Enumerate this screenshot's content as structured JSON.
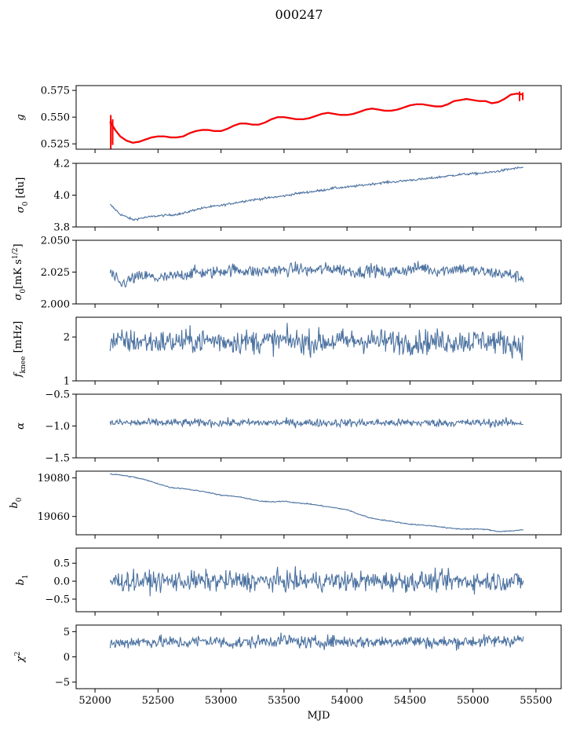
{
  "figure": {
    "title": "000247"
  },
  "colors": {
    "series": "#4c72a0",
    "overlay": "#ff0000",
    "frame": "#000000"
  },
  "chart_data": [
    {
      "type": "line",
      "name": "g",
      "ylabel": "g",
      "xlim": [
        51850,
        55700
      ],
      "ylim": [
        0.52,
        0.5795
      ],
      "yticks": [
        0.525,
        0.55,
        0.575
      ],
      "ytick_labels": [
        "0.525",
        "0.550",
        "0.575"
      ],
      "x": [
        52120,
        52160,
        52200,
        52250,
        52300,
        52350,
        52400,
        52450,
        52500,
        52550,
        52600,
        52650,
        52700,
        52750,
        52800,
        52850,
        52900,
        52950,
        53000,
        53050,
        53100,
        53150,
        53200,
        53250,
        53300,
        53350,
        53400,
        53450,
        53500,
        53550,
        53600,
        53650,
        53700,
        53750,
        53800,
        53850,
        53900,
        53950,
        54000,
        54050,
        54100,
        54150,
        54200,
        54250,
        54300,
        54350,
        54400,
        54450,
        54500,
        54550,
        54600,
        54650,
        54700,
        54750,
        54800,
        54850,
        54900,
        54950,
        55000,
        55050,
        55100,
        55150,
        55200,
        55250,
        55300,
        55350,
        55400
      ],
      "y": [
        0.545,
        0.538,
        0.532,
        0.528,
        0.526,
        0.527,
        0.529,
        0.531,
        0.532,
        0.532,
        0.531,
        0.531,
        0.532,
        0.535,
        0.537,
        0.538,
        0.538,
        0.537,
        0.537,
        0.539,
        0.542,
        0.544,
        0.544,
        0.543,
        0.543,
        0.545,
        0.548,
        0.55,
        0.55,
        0.549,
        0.548,
        0.548,
        0.549,
        0.551,
        0.553,
        0.554,
        0.553,
        0.552,
        0.552,
        0.553,
        0.555,
        0.557,
        0.558,
        0.557,
        0.556,
        0.556,
        0.557,
        0.559,
        0.561,
        0.562,
        0.562,
        0.561,
        0.56,
        0.56,
        0.562,
        0.565,
        0.566,
        0.567,
        0.566,
        0.565,
        0.565,
        0.563,
        0.564,
        0.567,
        0.571,
        0.572,
        0.571
      ],
      "overlay": {
        "x": [
          52120,
          52160,
          52200,
          52250,
          52300,
          52350,
          52400,
          52450,
          52500,
          52550,
          52600,
          52650,
          52700,
          52750,
          52800,
          52850,
          52900,
          52950,
          53000,
          53050,
          53100,
          53150,
          53200,
          53250,
          53300,
          53350,
          53400,
          53450,
          53500,
          53550,
          53600,
          53650,
          53700,
          53750,
          53800,
          53850,
          53900,
          53950,
          54000,
          54050,
          54100,
          54150,
          54200,
          54250,
          54300,
          54350,
          54400,
          54450,
          54500,
          54550,
          54600,
          54650,
          54700,
          54750,
          54800,
          54850,
          54900,
          54950,
          55000,
          55050,
          55100,
          55150,
          55200,
          55250,
          55300,
          55350,
          55400
        ],
        "y": [
          0.546,
          0.538,
          0.532,
          0.528,
          0.526,
          0.527,
          0.529,
          0.531,
          0.532,
          0.532,
          0.531,
          0.531,
          0.532,
          0.535,
          0.537,
          0.538,
          0.538,
          0.537,
          0.537,
          0.539,
          0.542,
          0.544,
          0.544,
          0.543,
          0.543,
          0.545,
          0.548,
          0.55,
          0.55,
          0.549,
          0.548,
          0.548,
          0.549,
          0.551,
          0.553,
          0.554,
          0.553,
          0.552,
          0.552,
          0.553,
          0.555,
          0.557,
          0.558,
          0.557,
          0.556,
          0.556,
          0.557,
          0.559,
          0.561,
          0.562,
          0.562,
          0.561,
          0.56,
          0.56,
          0.562,
          0.565,
          0.566,
          0.567,
          0.566,
          0.565,
          0.565,
          0.563,
          0.564,
          0.567,
          0.571,
          0.572,
          0.571
        ],
        "spikes": [
          {
            "x": 52125,
            "y0": 0.52,
            "y1": 0.552
          },
          {
            "x": 52140,
            "y0": 0.524,
            "y1": 0.548
          },
          {
            "x": 55370,
            "y0": 0.565,
            "y1": 0.574
          },
          {
            "x": 55395,
            "y0": 0.566,
            "y1": 0.573
          }
        ]
      }
    },
    {
      "type": "line",
      "name": "sigma0",
      "ylabel": "σ₀ [du]",
      "xlim": [
        51850,
        55700
      ],
      "ylim": [
        3.8,
        4.2
      ],
      "yticks": [
        3.8,
        4.0,
        4.2
      ],
      "ytick_labels": [
        "3.8",
        "4.0",
        "4.2"
      ],
      "x": [
        52120,
        52200,
        52300,
        52400,
        52500,
        52600,
        52700,
        52800,
        52900,
        53000,
        53100,
        53200,
        53300,
        53400,
        53500,
        53600,
        53700,
        53800,
        53900,
        54000,
        54100,
        54200,
        54300,
        54400,
        54500,
        54600,
        54700,
        54800,
        54900,
        55000,
        55100,
        55200,
        55300,
        55400
      ],
      "y": [
        3.94,
        3.88,
        3.845,
        3.86,
        3.87,
        3.875,
        3.885,
        3.91,
        3.925,
        3.935,
        3.95,
        3.965,
        3.975,
        3.985,
        3.995,
        4.01,
        4.02,
        4.03,
        4.045,
        4.05,
        4.06,
        4.07,
        4.08,
        4.085,
        4.095,
        4.1,
        4.11,
        4.12,
        4.13,
        4.135,
        4.14,
        4.15,
        4.165,
        4.175
      ],
      "noise": 0.005
    },
    {
      "type": "line",
      "name": "sigma0_rate",
      "ylabel": "σ₀[mK s¹ᐟ²]",
      "xlim": [
        51850,
        55700
      ],
      "ylim": [
        2.0,
        2.05
      ],
      "yticks": [
        2.0,
        2.025,
        2.05
      ],
      "ytick_labels": [
        "2.000",
        "2.025",
        "2.050"
      ],
      "x": [
        52120,
        52200,
        52300,
        52400,
        52500,
        52600,
        52700,
        52800,
        52900,
        53000,
        53100,
        53200,
        53300,
        53400,
        53500,
        53600,
        53700,
        53800,
        53900,
        54000,
        54100,
        54200,
        54300,
        54400,
        54500,
        54600,
        54700,
        54800,
        54900,
        55000,
        55100,
        55200,
        55300,
        55400
      ],
      "y": [
        2.025,
        2.015,
        2.02,
        2.022,
        2.02,
        2.021,
        2.023,
        2.025,
        2.024,
        2.026,
        2.027,
        2.026,
        2.025,
        2.027,
        2.026,
        2.028,
        2.026,
        2.027,
        2.028,
        2.026,
        2.025,
        2.027,
        2.024,
        2.026,
        2.027,
        2.029,
        2.026,
        2.027,
        2.028,
        2.026,
        2.025,
        2.024,
        2.023,
        2.02
      ],
      "noise": 0.0035
    },
    {
      "type": "line",
      "name": "fknee",
      "ylabel": "f_knee [mHz]",
      "xlim": [
        51850,
        55700
      ],
      "ylim": [
        1.0,
        2.45
      ],
      "yticks": [
        1,
        2
      ],
      "ytick_labels": [
        "1",
        "2"
      ],
      "x": [
        52120,
        52300,
        52500,
        52700,
        52900,
        53100,
        53300,
        53500,
        53700,
        53900,
        54100,
        54300,
        54500,
        54700,
        54900,
        55100,
        55300,
        55400
      ],
      "y": [
        1.9,
        1.9,
        1.88,
        1.9,
        1.92,
        1.9,
        1.9,
        1.92,
        1.88,
        1.9,
        1.92,
        1.9,
        1.88,
        1.9,
        1.9,
        1.92,
        1.85,
        1.8
      ],
      "noise": 0.2
    },
    {
      "type": "line",
      "name": "alpha",
      "ylabel": "α",
      "xlim": [
        51850,
        55700
      ],
      "ylim": [
        -1.5,
        -0.5
      ],
      "yticks": [
        -1.5,
        -1.0,
        -0.5
      ],
      "ytick_labels": [
        "−1.5",
        "−1.0",
        "−0.5"
      ],
      "x": [
        52120,
        53000,
        54000,
        55000,
        55400
      ],
      "y": [
        -0.95,
        -0.95,
        -0.95,
        -0.95,
        -0.95
      ],
      "noise": 0.045
    },
    {
      "type": "line",
      "name": "b0",
      "ylabel": "b₀",
      "xlim": [
        51850,
        55700
      ],
      "ylim": [
        19050.5,
        19083.5
      ],
      "yticks": [
        19060,
        19080
      ],
      "ytick_labels": [
        "19060",
        "19080"
      ],
      "x": [
        52120,
        52200,
        52300,
        52400,
        52500,
        52600,
        52700,
        52800,
        52900,
        53000,
        53100,
        53200,
        53300,
        53400,
        53500,
        53600,
        53700,
        53800,
        53900,
        54000,
        54100,
        54200,
        54300,
        54400,
        54500,
        54600,
        54700,
        54800,
        54900,
        55000,
        55100,
        55200,
        55300,
        55400
      ],
      "y": [
        19082,
        19081.5,
        19080.5,
        19079,
        19077,
        19075,
        19074.5,
        19073.5,
        19072.5,
        19071,
        19070.5,
        19069.5,
        19068,
        19067.5,
        19068,
        19067,
        19066.5,
        19065.5,
        19064.5,
        19063.5,
        19061,
        19059,
        19058,
        19057,
        19056,
        19055.5,
        19055,
        19054,
        19053.5,
        19053.5,
        19053.3,
        19052.2,
        19052.5,
        19053
      ],
      "noise": 0.2
    },
    {
      "type": "line",
      "name": "b1",
      "ylabel": "b₁",
      "xlim": [
        51850,
        55700
      ],
      "ylim": [
        -0.85,
        0.92
      ],
      "yticks": [
        -0.5,
        0.0,
        0.5
      ],
      "ytick_labels": [
        "−0.5",
        "0.0",
        "0.5"
      ],
      "x": [
        52120,
        53000,
        54000,
        55000,
        55400
      ],
      "y": [
        0.0,
        0.0,
        0.0,
        0.0,
        0.0
      ],
      "noise": 0.2
    },
    {
      "type": "line",
      "name": "chi2",
      "ylabel": "χ²",
      "xlim": [
        51850,
        55700
      ],
      "ylim": [
        -6.3,
        6.3
      ],
      "yticks": [
        -5,
        0,
        5
      ],
      "ytick_labels": [
        "−5",
        "0",
        "5"
      ],
      "xticks": [
        52000,
        52500,
        53000,
        53500,
        54000,
        54500,
        55000,
        55500
      ],
      "xtick_labels": [
        "52000",
        "52500",
        "53000",
        "53500",
        "54000",
        "54500",
        "55000",
        "55500"
      ],
      "xlabel": "MJD",
      "x": [
        52120,
        52300,
        52500,
        52700,
        52900,
        53100,
        53300,
        53500,
        53700,
        53900,
        54100,
        54300,
        54500,
        54700,
        54900,
        55100,
        55300,
        55400
      ],
      "y": [
        2.5,
        3.0,
        3.0,
        2.8,
        3.2,
        2.7,
        3.0,
        3.3,
        2.8,
        3.1,
        2.9,
        3.0,
        3.2,
        2.8,
        3.0,
        3.1,
        3.3,
        3.5
      ],
      "noise": 0.9
    }
  ]
}
